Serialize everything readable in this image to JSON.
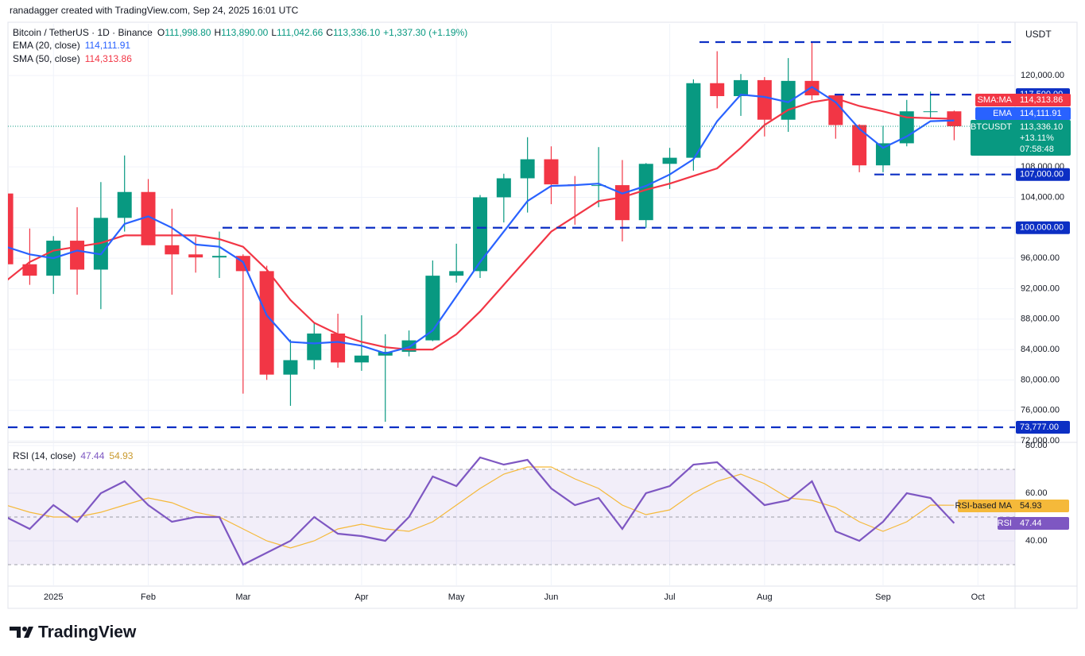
{
  "header": {
    "credit": "ranadagger created with TradingView.com, Sep 24, 2025 16:01 UTC",
    "symbol": "Bitcoin / TetherUS · 1D · Binance",
    "ohlc": [
      {
        "key": "O",
        "value": "111,998.80"
      },
      {
        "key": "H",
        "value": "113,890.00"
      },
      {
        "key": "L",
        "value": "111,042.66"
      },
      {
        "key": "C",
        "value": "113,336.10"
      }
    ],
    "change": "+1,337.30 (+1.19%)",
    "ema_legend": "EMA (20, close)",
    "sma_legend": "SMA (50, close)",
    "currency": "USDT"
  },
  "chart_data": [
    {
      "type": "candlestick",
      "categories": [
        null,
        null,
        "2025",
        null,
        null,
        null,
        "Feb",
        null,
        null,
        null,
        "Mar",
        null,
        null,
        null,
        null,
        "Apr",
        null,
        null,
        null,
        "May",
        null,
        null,
        null,
        "Jun",
        null,
        null,
        null,
        null,
        "Jul",
        null,
        null,
        null,
        "Aug",
        null,
        null,
        null,
        null,
        "Sep",
        null,
        null,
        null,
        "Oct",
        null
      ],
      "open": [
        104500,
        95200,
        93700,
        98300,
        94500,
        101300,
        104700,
        97700,
        96500,
        96100,
        96300,
        94300,
        80700,
        82600,
        86100,
        82300,
        83200,
        83700,
        85200,
        93700,
        94300,
        104000,
        106500,
        109000,
        105700,
        105600,
        105600,
        101000,
        108400,
        109200,
        119000,
        117300,
        119400,
        114200,
        119300,
        117400,
        113500,
        108200,
        111100,
        115300,
        115300,
        null,
        null
      ],
      "high": [
        108300,
        99900,
        98900,
        102700,
        106000,
        109500,
        106400,
        102500,
        98800,
        99500,
        96500,
        95000,
        85300,
        87500,
        88700,
        88500,
        86000,
        86500,
        95700,
        97900,
        104300,
        107100,
        111900,
        110700,
        106800,
        110600,
        108900,
        108500,
        110500,
        119500,
        123200,
        120200,
        119800,
        122300,
        124500,
        117600,
        113600,
        113400,
        116800,
        117900,
        115400,
        null,
        null
      ],
      "low": [
        92200,
        92500,
        91300,
        91200,
        89300,
        99500,
        97800,
        91200,
        94100,
        93400,
        78200,
        80000,
        76600,
        81400,
        81600,
        81200,
        74500,
        83100,
        85100,
        92800,
        93400,
        100700,
        102000,
        103100,
        100400,
        102700,
        98200,
        100000,
        105100,
        107500,
        115700,
        114700,
        112000,
        112600,
        116800,
        111700,
        107300,
        107300,
        110700,
        114400,
        111500,
        null,
        null
      ],
      "close": [
        95200,
        93700,
        98300,
        94500,
        101300,
        104700,
        97700,
        96500,
        96100,
        96300,
        94300,
        80700,
        82600,
        86100,
        82300,
        83200,
        83700,
        85200,
        93700,
        94300,
        104000,
        106500,
        109000,
        105700,
        105600,
        105600,
        101000,
        108400,
        109200,
        119000,
        117300,
        119400,
        114200,
        119300,
        117400,
        113500,
        108200,
        111100,
        115300,
        115300,
        113336.1,
        null,
        null
      ],
      "up_color": "#089981",
      "down_color": "#f23645",
      "overlays": [
        {
          "name": "SMA:MA",
          "color": "#f23645",
          "value_label": "114,313.86",
          "values": [
            93000,
            95500,
            97000,
            97500,
            98000,
            99000,
            99000,
            99000,
            99000,
            98500,
            97500,
            94500,
            90500,
            87500,
            86000,
            85000,
            84300,
            84000,
            84000,
            86000,
            89000,
            92500,
            96000,
            99500,
            101500,
            103500,
            104000,
            105000,
            105800,
            106800,
            107800,
            110500,
            113500,
            115500,
            116500,
            117000,
            116000,
            115300,
            114500,
            114400,
            114313.86,
            null,
            null
          ]
        },
        {
          "name": "EMA",
          "color": "#2962ff",
          "value_label": "114,111.91",
          "values": [
            97500,
            96500,
            96000,
            97000,
            96500,
            100500,
            101500,
            100000,
            97800,
            97500,
            95500,
            88500,
            85000,
            84800,
            85000,
            84500,
            83500,
            84300,
            86500,
            91000,
            95500,
            99500,
            103500,
            105500,
            105600,
            105800,
            104500,
            105500,
            107000,
            109000,
            114000,
            117500,
            117200,
            116500,
            118500,
            116500,
            113000,
            110500,
            112000,
            114000,
            114111.91,
            null,
            null
          ]
        }
      ],
      "last_price": {
        "name": "BTCUSDT",
        "label": "113,336.10",
        "change": "+13.11%",
        "countdown": "07:58:48"
      },
      "levels": [
        124400,
        {
          "value": 117500,
          "label": "117,500.00"
        },
        {
          "value": 107000,
          "label": "107,000.00"
        },
        {
          "value": 100000,
          "label": "100,000.00"
        },
        {
          "value": 73777,
          "label": "73,777.00"
        }
      ],
      "level_color": "#0c2fc4",
      "ylim": [
        71900,
        126800
      ],
      "yticks": [
        {
          "value": 72000,
          "label": "72,000.00"
        },
        {
          "value": 76000,
          "label": "76,000.00"
        },
        {
          "value": 80000,
          "label": "80,000.00"
        },
        {
          "value": 84000,
          "label": "84,000.00"
        },
        {
          "value": 88000,
          "label": "88,000.00"
        },
        {
          "value": 92000,
          "label": "92,000.00"
        },
        {
          "value": 96000,
          "label": "96,000.00"
        },
        {
          "value": 100000,
          "label": "100,000.00"
        },
        {
          "value": 104000,
          "label": "104,000.00"
        },
        {
          "value": 108000,
          "label": "108,000.00"
        },
        {
          "value": 120000,
          "label": "120,000.00"
        }
      ],
      "grid": true
    },
    {
      "type": "line",
      "legend": "RSI (14, close)",
      "series": [
        {
          "name": "RSI",
          "color": "#7e57c2",
          "value_label": "47.44",
          "values": [
            50,
            45,
            55,
            48,
            60,
            65,
            55,
            48,
            50,
            50,
            30,
            35,
            40,
            50,
            43,
            42,
            40,
            50,
            67,
            63,
            75,
            72,
            74,
            62,
            55,
            58,
            45,
            60,
            63,
            72,
            73,
            64,
            55,
            57,
            65,
            44,
            40,
            48,
            60,
            58,
            47.44,
            null,
            null
          ]
        },
        {
          "name": "RSI-based MA",
          "color": "#f5b93a",
          "value_label": "54.93",
          "values": [
            55,
            52,
            50,
            50,
            52,
            55,
            58,
            56,
            52,
            50,
            45,
            40,
            37,
            40,
            45,
            47,
            45,
            44,
            48,
            55,
            62,
            68,
            71,
            71,
            66,
            62,
            55,
            51,
            53,
            60,
            65,
            68,
            64,
            58,
            57,
            54,
            48,
            44,
            48,
            55,
            54.93,
            null,
            null
          ]
        }
      ],
      "bands": [
        70,
        50,
        30
      ],
      "band_color": "#7e57c2",
      "ylim": [
        21,
        81
      ],
      "yticks": [
        {
          "value": 80,
          "label": "80.00"
        },
        {
          "value": 60,
          "label": "60.00"
        },
        {
          "value": 40,
          "label": "40.00"
        }
      ],
      "grid": true
    }
  ],
  "footer": {
    "brand": "TradingView"
  }
}
